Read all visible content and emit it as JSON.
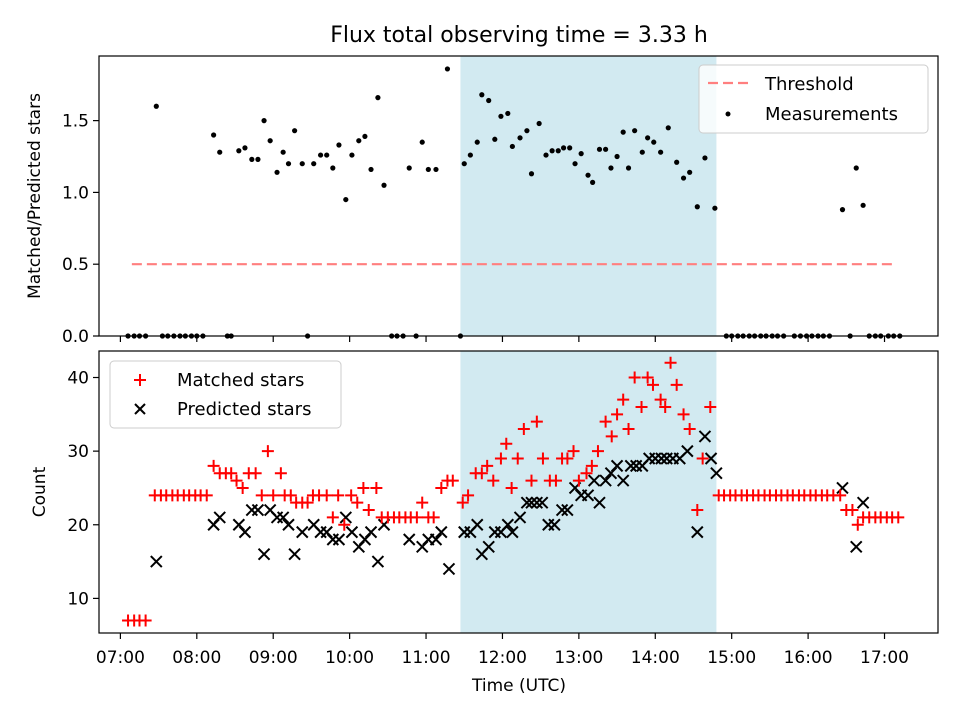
{
  "chart_data": {
    "title": "Flux total observing time = 3.33 h",
    "x_axis": {
      "label": "Time (UTC)",
      "range_hours": [
        6.72,
        17.7
      ],
      "ticks": [
        {
          "h": 7,
          "label": "07:00"
        },
        {
          "h": 8,
          "label": "08:00"
        },
        {
          "h": 9,
          "label": "09:00"
        },
        {
          "h": 10,
          "label": "10:00"
        },
        {
          "h": 11,
          "label": "11:00"
        },
        {
          "h": 12,
          "label": "12:00"
        },
        {
          "h": 13,
          "label": "13:00"
        },
        {
          "h": 14,
          "label": "14:00"
        },
        {
          "h": 15,
          "label": "15:00"
        },
        {
          "h": 16,
          "label": "16:00"
        },
        {
          "h": 17,
          "label": "17:00"
        }
      ]
    },
    "shaded_interval_hours": [
      11.45,
      14.8
    ],
    "colors": {
      "threshold": "#ff7f7f",
      "measurements": "#000000",
      "matched": "#ff0000",
      "predicted": "#000000",
      "shade": "#add8e6"
    },
    "top": {
      "type": "scatter",
      "ylabel": "Matched/Predicted stars",
      "ylim": [
        0,
        1.95
      ],
      "yticks": [
        0,
        0.5,
        1.0,
        1.5
      ],
      "ytick_labels": [
        "0.0",
        "0.5",
        "1.0",
        "1.5"
      ],
      "threshold": {
        "label": "Threshold",
        "value": 0.5,
        "x_range": [
          7.15,
          17.15
        ]
      },
      "measurements_label": "Measurements",
      "points": [
        [
          7.1,
          0
        ],
        [
          7.18,
          0
        ],
        [
          7.25,
          0
        ],
        [
          7.33,
          0
        ],
        [
          7.47,
          1.6
        ],
        [
          7.55,
          0
        ],
        [
          7.62,
          0
        ],
        [
          7.7,
          0
        ],
        [
          7.78,
          0
        ],
        [
          7.85,
          0
        ],
        [
          7.93,
          0
        ],
        [
          8.0,
          0
        ],
        [
          8.08,
          0
        ],
        [
          8.22,
          1.4
        ],
        [
          8.3,
          1.28
        ],
        [
          8.4,
          0
        ],
        [
          8.45,
          0
        ],
        [
          8.55,
          1.29
        ],
        [
          8.63,
          1.31
        ],
        [
          8.72,
          1.23
        ],
        [
          8.8,
          1.23
        ],
        [
          8.88,
          1.5
        ],
        [
          8.96,
          1.36
        ],
        [
          9.05,
          1.14
        ],
        [
          9.13,
          1.28
        ],
        [
          9.2,
          1.2
        ],
        [
          9.28,
          1.43
        ],
        [
          9.38,
          1.2
        ],
        [
          9.45,
          0
        ],
        [
          9.53,
          1.2
        ],
        [
          9.62,
          1.26
        ],
        [
          9.7,
          1.26
        ],
        [
          9.78,
          1.17
        ],
        [
          9.86,
          1.33
        ],
        [
          9.95,
          0.95
        ],
        [
          10.03,
          1.26
        ],
        [
          10.12,
          1.36
        ],
        [
          10.2,
          1.39
        ],
        [
          10.28,
          1.16
        ],
        [
          10.37,
          1.66
        ],
        [
          10.45,
          1.05
        ],
        [
          10.55,
          0
        ],
        [
          10.62,
          0
        ],
        [
          10.7,
          0
        ],
        [
          10.78,
          1.17
        ],
        [
          10.87,
          0
        ],
        [
          10.95,
          1.35
        ],
        [
          11.03,
          1.16
        ],
        [
          11.13,
          1.16
        ],
        [
          11.28,
          1.86
        ],
        [
          11.45,
          0
        ],
        [
          11.5,
          1.2
        ],
        [
          11.58,
          1.26
        ],
        [
          11.67,
          1.35
        ],
        [
          11.73,
          1.68
        ],
        [
          11.82,
          1.64
        ],
        [
          11.9,
          1.37
        ],
        [
          11.98,
          1.53
        ],
        [
          12.07,
          1.55
        ],
        [
          12.13,
          1.32
        ],
        [
          12.23,
          1.38
        ],
        [
          12.32,
          1.43
        ],
        [
          12.38,
          1.13
        ],
        [
          12.48,
          1.48
        ],
        [
          12.57,
          1.26
        ],
        [
          12.65,
          1.29
        ],
        [
          12.73,
          1.29
        ],
        [
          12.8,
          1.31
        ],
        [
          12.88,
          1.31
        ],
        [
          12.95,
          1.2
        ],
        [
          13.03,
          1.27
        ],
        [
          13.12,
          1.12
        ],
        [
          13.18,
          1.07
        ],
        [
          13.27,
          1.3
        ],
        [
          13.35,
          1.3
        ],
        [
          13.42,
          1.17
        ],
        [
          13.5,
          1.25
        ],
        [
          13.58,
          1.42
        ],
        [
          13.65,
          1.17
        ],
        [
          13.73,
          1.43
        ],
        [
          13.83,
          1.28
        ],
        [
          13.9,
          1.38
        ],
        [
          13.98,
          1.35
        ],
        [
          14.07,
          1.28
        ],
        [
          14.17,
          1.45
        ],
        [
          14.28,
          1.21
        ],
        [
          14.37,
          1.1
        ],
        [
          14.45,
          1.14
        ],
        [
          14.55,
          0.9
        ],
        [
          14.65,
          1.24
        ],
        [
          14.78,
          0.89
        ],
        [
          14.93,
          0
        ],
        [
          15.0,
          0
        ],
        [
          15.08,
          0
        ],
        [
          15.15,
          0
        ],
        [
          15.23,
          0
        ],
        [
          15.3,
          0
        ],
        [
          15.38,
          0
        ],
        [
          15.45,
          0
        ],
        [
          15.53,
          0
        ],
        [
          15.6,
          0
        ],
        [
          15.68,
          0
        ],
        [
          15.82,
          0
        ],
        [
          15.9,
          0
        ],
        [
          15.98,
          0
        ],
        [
          16.05,
          0
        ],
        [
          16.13,
          0
        ],
        [
          16.2,
          0
        ],
        [
          16.28,
          0
        ],
        [
          16.45,
          0.88
        ],
        [
          16.55,
          0
        ],
        [
          16.63,
          1.17
        ],
        [
          16.72,
          0.91
        ],
        [
          16.8,
          0
        ],
        [
          16.88,
          0
        ],
        [
          16.95,
          0
        ],
        [
          17.05,
          0
        ],
        [
          17.12,
          0
        ],
        [
          17.2,
          0
        ]
      ]
    },
    "bottom": {
      "type": "scatter",
      "ylabel": "Count",
      "ylim": [
        5.3,
        43.6
      ],
      "yticks": [
        10,
        20,
        30,
        40
      ],
      "ytick_labels": [
        "10",
        "20",
        "30",
        "40"
      ],
      "matched_label": "Matched stars",
      "predicted_label": "Predicted stars",
      "matched": [
        [
          7.1,
          7
        ],
        [
          7.18,
          7
        ],
        [
          7.25,
          7
        ],
        [
          7.33,
          7
        ],
        [
          7.45,
          24
        ],
        [
          7.53,
          24
        ],
        [
          7.6,
          24
        ],
        [
          7.68,
          24
        ],
        [
          7.75,
          24
        ],
        [
          7.83,
          24
        ],
        [
          7.9,
          24
        ],
        [
          7.98,
          24
        ],
        [
          8.05,
          24
        ],
        [
          8.13,
          24
        ],
        [
          8.22,
          28
        ],
        [
          8.3,
          27
        ],
        [
          8.38,
          27
        ],
        [
          8.45,
          27
        ],
        [
          8.52,
          26
        ],
        [
          8.6,
          25
        ],
        [
          8.68,
          27
        ],
        [
          8.77,
          27
        ],
        [
          8.85,
          24
        ],
        [
          8.93,
          30
        ],
        [
          9.0,
          24
        ],
        [
          9.1,
          27
        ],
        [
          9.15,
          24
        ],
        [
          9.23,
          24
        ],
        [
          9.3,
          23
        ],
        [
          9.38,
          23
        ],
        [
          9.45,
          23
        ],
        [
          9.52,
          24
        ],
        [
          9.6,
          24
        ],
        [
          9.7,
          24
        ],
        [
          9.78,
          21
        ],
        [
          9.85,
          24
        ],
        [
          9.93,
          20
        ],
        [
          10.02,
          24
        ],
        [
          10.1,
          23
        ],
        [
          10.18,
          25
        ],
        [
          10.25,
          22
        ],
        [
          10.35,
          25
        ],
        [
          10.42,
          21
        ],
        [
          10.5,
          21
        ],
        [
          10.58,
          21
        ],
        [
          10.65,
          21
        ],
        [
          10.73,
          21
        ],
        [
          10.8,
          21
        ],
        [
          10.88,
          21
        ],
        [
          10.95,
          23
        ],
        [
          11.03,
          21
        ],
        [
          11.1,
          21
        ],
        [
          11.2,
          25
        ],
        [
          11.28,
          26
        ],
        [
          11.35,
          26
        ],
        [
          11.48,
          23
        ],
        [
          11.55,
          24
        ],
        [
          11.65,
          27
        ],
        [
          11.73,
          27
        ],
        [
          11.8,
          28
        ],
        [
          11.88,
          26
        ],
        [
          11.98,
          29
        ],
        [
          12.05,
          31
        ],
        [
          12.12,
          25
        ],
        [
          12.2,
          29
        ],
        [
          12.28,
          33
        ],
        [
          12.38,
          26
        ],
        [
          12.45,
          34
        ],
        [
          12.53,
          29
        ],
        [
          12.62,
          26
        ],
        [
          12.7,
          26
        ],
        [
          12.78,
          29
        ],
        [
          12.85,
          29
        ],
        [
          12.93,
          30
        ],
        [
          13.0,
          26
        ],
        [
          13.1,
          27
        ],
        [
          13.17,
          28
        ],
        [
          13.25,
          30
        ],
        [
          13.35,
          34
        ],
        [
          13.43,
          32
        ],
        [
          13.5,
          35
        ],
        [
          13.58,
          37
        ],
        [
          13.65,
          33
        ],
        [
          13.73,
          40
        ],
        [
          13.82,
          36
        ],
        [
          13.9,
          40
        ],
        [
          13.97,
          39
        ],
        [
          14.07,
          37
        ],
        [
          14.13,
          36
        ],
        [
          14.2,
          42
        ],
        [
          14.28,
          39
        ],
        [
          14.37,
          35
        ],
        [
          14.45,
          33
        ],
        [
          14.55,
          22
        ],
        [
          14.62,
          29
        ],
        [
          14.72,
          36
        ],
        [
          14.83,
          24
        ],
        [
          14.9,
          24
        ],
        [
          14.98,
          24
        ],
        [
          15.05,
          24
        ],
        [
          15.13,
          24
        ],
        [
          15.2,
          24
        ],
        [
          15.28,
          24
        ],
        [
          15.35,
          24
        ],
        [
          15.43,
          24
        ],
        [
          15.5,
          24
        ],
        [
          15.58,
          24
        ],
        [
          15.65,
          24
        ],
        [
          15.73,
          24
        ],
        [
          15.8,
          24
        ],
        [
          15.88,
          24
        ],
        [
          15.95,
          24
        ],
        [
          16.03,
          24
        ],
        [
          16.1,
          24
        ],
        [
          16.18,
          24
        ],
        [
          16.25,
          24
        ],
        [
          16.33,
          24
        ],
        [
          16.42,
          24
        ],
        [
          16.5,
          22
        ],
        [
          16.58,
          22
        ],
        [
          16.65,
          20
        ],
        [
          16.72,
          21
        ],
        [
          16.8,
          21
        ],
        [
          16.88,
          21
        ],
        [
          16.95,
          21
        ],
        [
          17.03,
          21
        ],
        [
          17.1,
          21
        ],
        [
          17.18,
          21
        ]
      ],
      "predicted": [
        [
          7.47,
          15
        ],
        [
          8.22,
          20
        ],
        [
          8.3,
          21
        ],
        [
          8.55,
          20
        ],
        [
          8.63,
          19
        ],
        [
          8.72,
          22
        ],
        [
          8.8,
          22
        ],
        [
          8.88,
          16
        ],
        [
          8.96,
          22
        ],
        [
          9.05,
          21
        ],
        [
          9.13,
          21
        ],
        [
          9.2,
          20
        ],
        [
          9.28,
          16
        ],
        [
          9.38,
          19
        ],
        [
          9.53,
          20
        ],
        [
          9.62,
          19
        ],
        [
          9.7,
          19
        ],
        [
          9.78,
          18
        ],
        [
          9.86,
          18
        ],
        [
          9.95,
          21
        ],
        [
          10.03,
          19
        ],
        [
          10.12,
          17
        ],
        [
          10.2,
          18
        ],
        [
          10.28,
          19
        ],
        [
          10.37,
          15
        ],
        [
          10.45,
          20
        ],
        [
          10.78,
          18
        ],
        [
          10.95,
          17
        ],
        [
          11.03,
          18
        ],
        [
          11.13,
          18
        ],
        [
          11.2,
          19
        ],
        [
          11.3,
          14
        ],
        [
          11.5,
          19
        ],
        [
          11.58,
          19
        ],
        [
          11.67,
          20
        ],
        [
          11.73,
          16
        ],
        [
          11.82,
          17
        ],
        [
          11.9,
          19
        ],
        [
          11.98,
          19
        ],
        [
          12.07,
          20
        ],
        [
          12.13,
          19
        ],
        [
          12.23,
          21
        ],
        [
          12.32,
          23
        ],
        [
          12.38,
          23
        ],
        [
          12.45,
          23
        ],
        [
          12.52,
          23
        ],
        [
          12.6,
          20
        ],
        [
          12.68,
          20
        ],
        [
          12.78,
          22
        ],
        [
          12.85,
          22
        ],
        [
          12.95,
          25
        ],
        [
          13.03,
          24
        ],
        [
          13.12,
          24
        ],
        [
          13.2,
          26
        ],
        [
          13.27,
          23
        ],
        [
          13.35,
          26
        ],
        [
          13.42,
          27
        ],
        [
          13.5,
          28
        ],
        [
          13.58,
          26
        ],
        [
          13.68,
          28
        ],
        [
          13.75,
          28
        ],
        [
          13.83,
          28
        ],
        [
          13.92,
          29
        ],
        [
          14.0,
          29
        ],
        [
          14.08,
          29
        ],
        [
          14.15,
          29
        ],
        [
          14.23,
          29
        ],
        [
          14.32,
          29
        ],
        [
          14.42,
          30
        ],
        [
          14.55,
          19
        ],
        [
          14.65,
          32
        ],
        [
          14.73,
          29
        ],
        [
          14.8,
          27
        ],
        [
          16.45,
          25
        ],
        [
          16.63,
          17
        ],
        [
          16.72,
          23
        ]
      ]
    }
  }
}
